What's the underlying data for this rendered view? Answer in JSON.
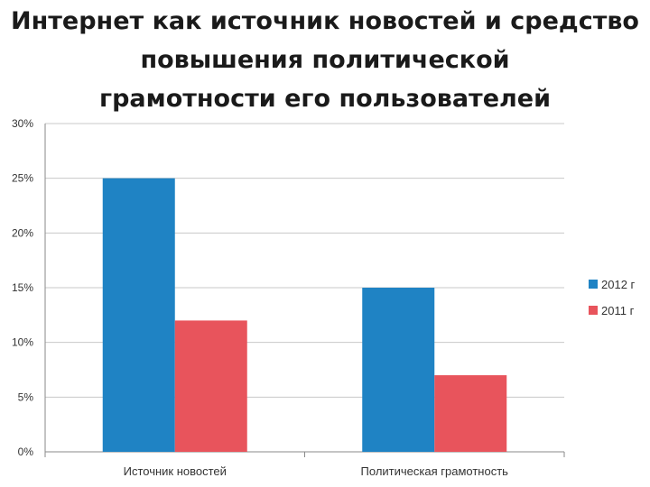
{
  "page": {
    "title_lines": [
      "Интернет как источник новостей и средство",
      "повышения политической",
      "грамотности его пользователей"
    ]
  },
  "chart_data": {
    "type": "bar",
    "title": "Интернет как источник новостей и средство повышения политической грамотности его пользователей",
    "categories": [
      "Источник новостей",
      "Политическая грамотность"
    ],
    "series": [
      {
        "name": "2012 г",
        "values": [
          25,
          15
        ],
        "color": "#1f83c4"
      },
      {
        "name": "2011 г",
        "values": [
          12,
          7
        ],
        "color": "#e8545c"
      }
    ],
    "ylim": [
      0,
      30
    ],
    "yticks": [
      0,
      5,
      10,
      15,
      20,
      25,
      30
    ],
    "ytick_labels": [
      "0%",
      "5%",
      "10%",
      "15%",
      "20%",
      "25%",
      "30%"
    ],
    "xlabel": "",
    "ylabel": "",
    "grid": true,
    "legend_position": "right"
  }
}
